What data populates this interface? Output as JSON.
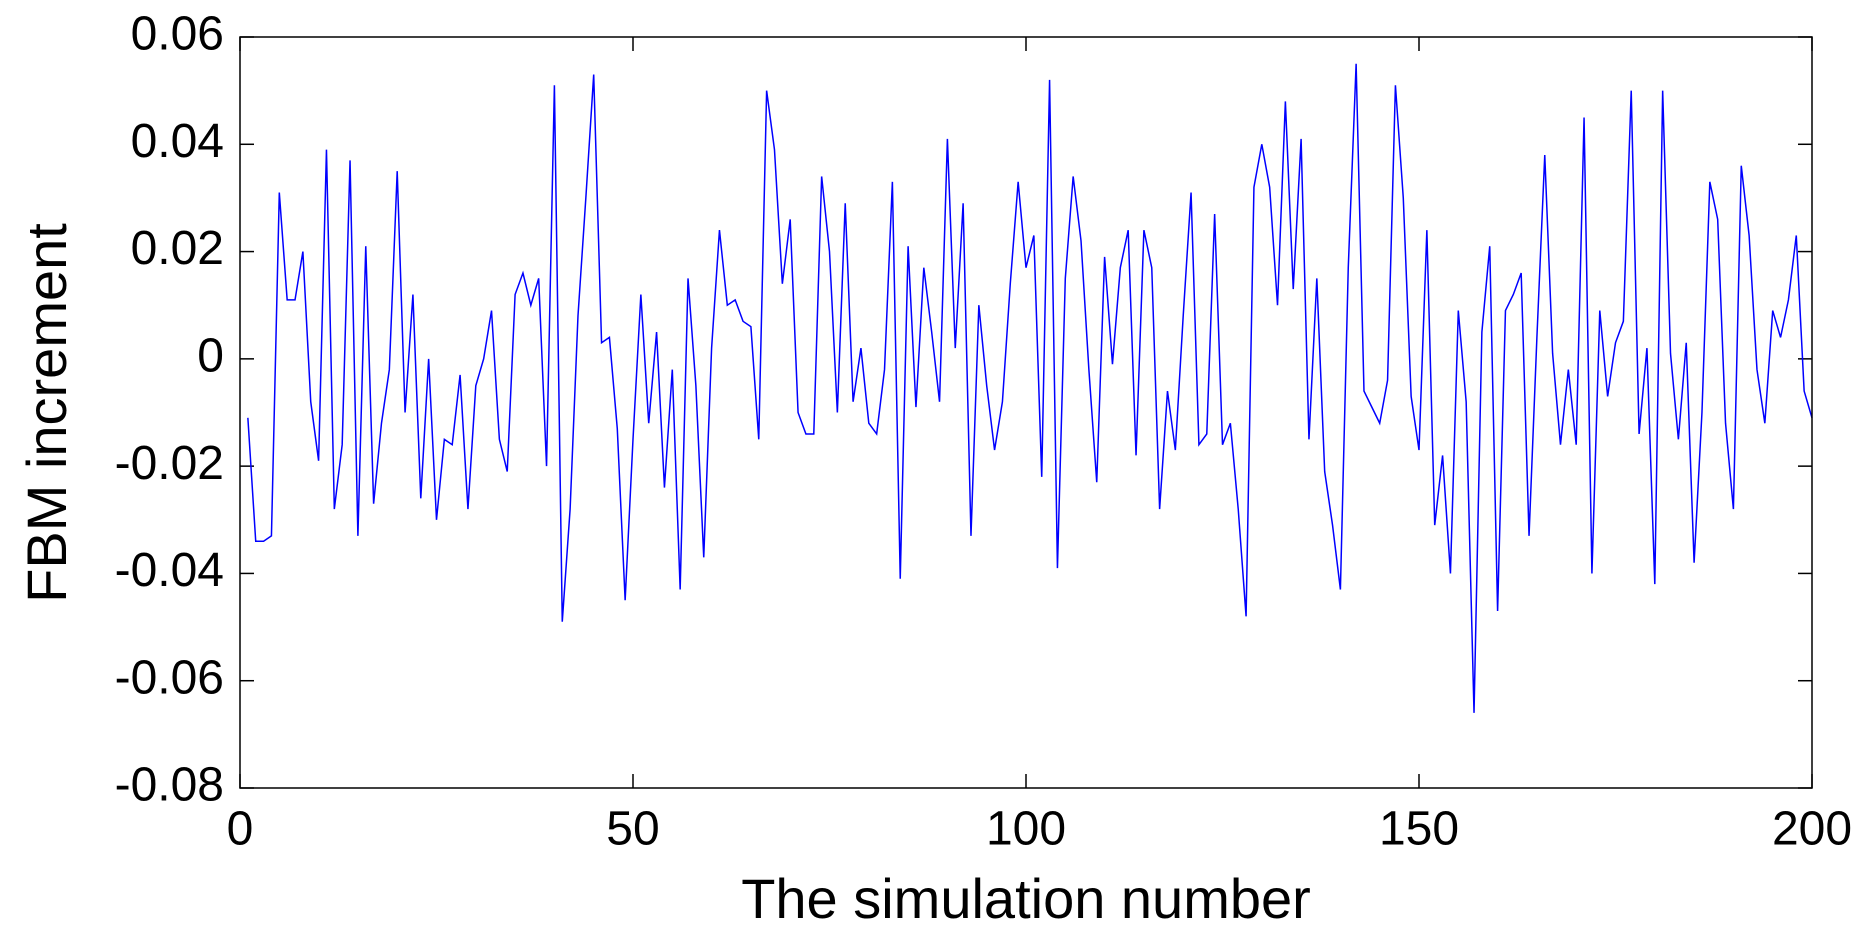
{
  "chart_data": {
    "type": "line",
    "xlabel": "The simulation number",
    "ylabel": "FBM increment",
    "x": [
      1,
      2,
      3,
      4,
      5,
      6,
      7,
      8,
      9,
      10,
      11,
      12,
      13,
      14,
      15,
      16,
      17,
      18,
      19,
      20,
      21,
      22,
      23,
      24,
      25,
      26,
      27,
      28,
      29,
      30,
      31,
      32,
      33,
      34,
      35,
      36,
      37,
      38,
      39,
      40,
      41,
      42,
      43,
      44,
      45,
      46,
      47,
      48,
      49,
      50,
      51,
      52,
      53,
      54,
      55,
      56,
      57,
      58,
      59,
      60,
      61,
      62,
      63,
      64,
      65,
      66,
      67,
      68,
      69,
      70,
      71,
      72,
      73,
      74,
      75,
      76,
      77,
      78,
      79,
      80,
      81,
      82,
      83,
      84,
      85,
      86,
      87,
      88,
      89,
      90,
      91,
      92,
      93,
      94,
      95,
      96,
      97,
      98,
      99,
      100,
      101,
      102,
      103,
      104,
      105,
      106,
      107,
      108,
      109,
      110,
      111,
      112,
      113,
      114,
      115,
      116,
      117,
      118,
      119,
      120,
      121,
      122,
      123,
      124,
      125,
      126,
      127,
      128,
      129,
      130,
      131,
      132,
      133,
      134,
      135,
      136,
      137,
      138,
      139,
      140,
      141,
      142,
      143,
      144,
      145,
      146,
      147,
      148,
      149,
      150,
      151,
      152,
      153,
      154,
      155,
      156,
      157,
      158,
      159,
      160,
      161,
      162,
      163,
      164,
      165,
      166,
      167,
      168,
      169,
      170,
      171,
      172,
      173,
      174,
      175,
      176,
      177,
      178,
      179,
      180,
      181,
      182,
      183,
      184,
      185,
      186,
      187,
      188,
      189,
      190,
      191,
      192,
      193,
      194,
      195,
      196,
      197,
      198,
      199,
      200
    ],
    "values": [
      -0.011,
      -0.034,
      -0.034,
      -0.033,
      0.031,
      0.011,
      0.011,
      0.02,
      -0.008,
      -0.019,
      0.039,
      -0.028,
      -0.016,
      0.037,
      -0.033,
      0.021,
      -0.027,
      -0.012,
      -0.002,
      0.035,
      -0.01,
      0.012,
      -0.026,
      0.0,
      -0.03,
      -0.015,
      -0.016,
      -0.003,
      -0.028,
      -0.005,
      0.0,
      0.009,
      -0.015,
      -0.021,
      0.012,
      0.016,
      0.01,
      0.015,
      -0.02,
      0.051,
      -0.049,
      -0.028,
      0.008,
      0.03,
      0.053,
      0.003,
      0.004,
      -0.013,
      -0.045,
      -0.015,
      0.012,
      -0.012,
      0.005,
      -0.024,
      -0.002,
      -0.043,
      0.015,
      -0.005,
      -0.037,
      0.002,
      0.024,
      0.01,
      0.011,
      0.007,
      0.006,
      -0.015,
      0.05,
      0.039,
      0.014,
      0.026,
      -0.01,
      -0.014,
      -0.014,
      0.034,
      0.02,
      -0.01,
      0.029,
      -0.008,
      0.002,
      -0.012,
      -0.014,
      -0.002,
      0.033,
      -0.041,
      0.021,
      -0.009,
      0.017,
      0.005,
      -0.008,
      0.041,
      0.002,
      0.029,
      -0.033,
      0.01,
      -0.005,
      -0.017,
      -0.008,
      0.014,
      0.033,
      0.017,
      0.023,
      -0.022,
      0.052,
      -0.039,
      0.015,
      0.034,
      0.022,
      -0.002,
      -0.023,
      0.019,
      -0.001,
      0.017,
      0.024,
      -0.018,
      0.024,
      0.017,
      -0.028,
      -0.006,
      -0.017,
      0.008,
      0.031,
      -0.016,
      -0.014,
      0.027,
      -0.016,
      -0.012,
      -0.028,
      -0.048,
      0.032,
      0.04,
      0.032,
      0.01,
      0.048,
      0.013,
      0.041,
      -0.015,
      0.015,
      -0.021,
      -0.031,
      -0.043,
      0.017,
      0.055,
      -0.006,
      -0.009,
      -0.012,
      -0.004,
      0.051,
      0.03,
      -0.007,
      -0.017,
      0.024,
      -0.031,
      -0.018,
      -0.04,
      0.009,
      -0.008,
      -0.066,
      0.005,
      0.021,
      -0.047,
      0.009,
      0.012,
      0.016,
      -0.033,
      0.004,
      0.038,
      0.001,
      -0.016,
      -0.002,
      -0.016,
      0.045,
      -0.04,
      0.009,
      -0.007,
      0.003,
      0.007,
      0.05,
      -0.014,
      0.002,
      -0.042,
      0.05,
      0.001,
      -0.015,
      0.003,
      -0.038,
      -0.01,
      0.033,
      0.026,
      -0.012,
      -0.028,
      0.036,
      0.023,
      -0.002,
      -0.012,
      0.009,
      0.004,
      0.011,
      0.023,
      -0.006,
      -0.011
    ],
    "color": "#0000ff",
    "xlim": [
      0,
      200
    ],
    "xticks": [
      0,
      50,
      100,
      150,
      200
    ],
    "ylim": [
      -0.08,
      0.06
    ],
    "yticks": [
      -0.08,
      -0.06,
      -0.04,
      -0.02,
      0,
      0.02,
      0.04,
      0.06
    ],
    "grid": false
  }
}
